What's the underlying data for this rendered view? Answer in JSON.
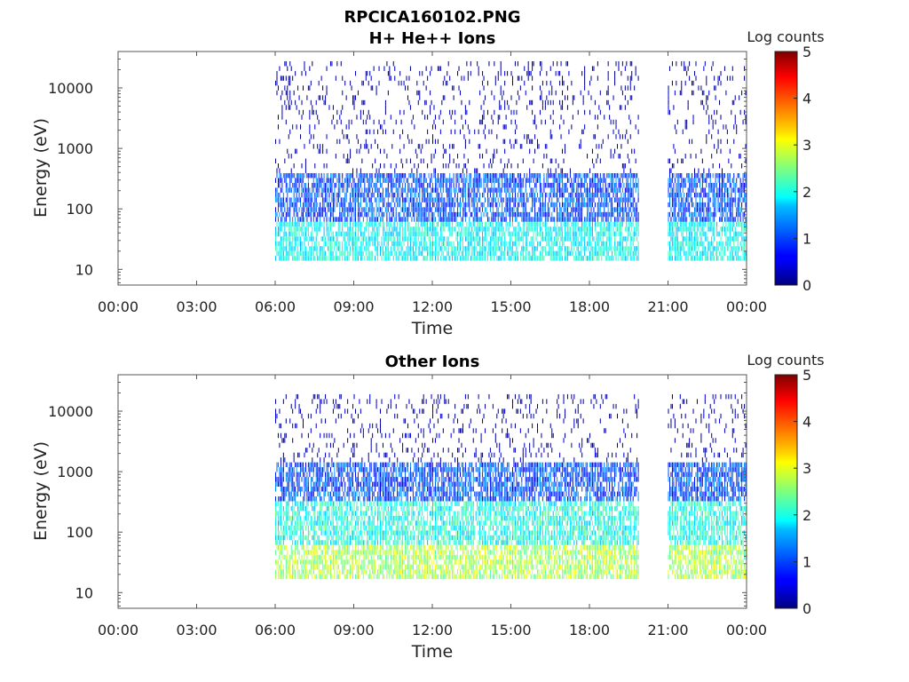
{
  "figure_title": "RPCICA160102.PNG",
  "chart_data": [
    {
      "type": "heatmap",
      "title": "H+ He++ Ions",
      "xlabel": "Time",
      "ylabel": "Energy (eV)",
      "x_ticks": [
        "00:00",
        "03:00",
        "06:00",
        "09:00",
        "12:00",
        "15:00",
        "18:00",
        "21:00",
        "00:00"
      ],
      "xlim_hours": [
        0,
        24
      ],
      "y_scale": "log",
      "y_ticks": [
        {
          "value": 10,
          "label": "10"
        },
        {
          "value": 100,
          "label": "100"
        },
        {
          "value": 1000,
          "label": "1000"
        },
        {
          "value": 10000,
          "label": "10000"
        }
      ],
      "ylim": [
        5.5,
        40000
      ],
      "colorbar": {
        "label": "Log counts",
        "range": [
          0,
          5
        ],
        "ticks": [
          "0",
          "1",
          "2",
          "3",
          "4",
          "5"
        ],
        "colormap": "jet"
      },
      "data_coverage_hours": [
        [
          6.0,
          19.9
        ],
        [
          21.0,
          24.0
        ]
      ],
      "gap_hours": [
        [
          0,
          6.0
        ],
        [
          19.9,
          21.0
        ]
      ],
      "approx_intensity_profile": [
        {
          "energy_range_eV": [
            15,
            60
          ],
          "log_counts": [
            1.5,
            2.3
          ]
        },
        {
          "energy_range_eV": [
            60,
            400
          ],
          "log_counts": [
            0.5,
            1.5
          ]
        },
        {
          "energy_range_eV": [
            400,
            30000
          ],
          "log_counts": [
            0,
            0.5
          ]
        }
      ]
    },
    {
      "type": "heatmap",
      "title": "Other Ions",
      "xlabel": "Time",
      "ylabel": "Energy (eV)",
      "x_ticks": [
        "00:00",
        "03:00",
        "06:00",
        "09:00",
        "12:00",
        "15:00",
        "18:00",
        "21:00",
        "00:00"
      ],
      "xlim_hours": [
        0,
        24
      ],
      "y_scale": "log",
      "y_ticks": [
        {
          "value": 10,
          "label": "10"
        },
        {
          "value": 100,
          "label": "100"
        },
        {
          "value": 1000,
          "label": "1000"
        },
        {
          "value": 10000,
          "label": "10000"
        }
      ],
      "ylim": [
        5.5,
        40000
      ],
      "colorbar": {
        "label": "Log counts",
        "range": [
          0,
          5
        ],
        "ticks": [
          "0",
          "1",
          "2",
          "3",
          "4",
          "5"
        ],
        "colormap": "jet"
      },
      "data_coverage_hours": [
        [
          6.0,
          19.9
        ],
        [
          21.0,
          24.0
        ]
      ],
      "gap_hours": [
        [
          0,
          6.0
        ],
        [
          19.9,
          21.0
        ]
      ],
      "approx_intensity_profile": [
        {
          "energy_range_eV": [
            17,
            60
          ],
          "log_counts": [
            2.2,
            3.2
          ]
        },
        {
          "energy_range_eV": [
            60,
            300
          ],
          "log_counts": [
            1.5,
            2.5
          ]
        },
        {
          "energy_range_eV": [
            300,
            1500
          ],
          "log_counts": [
            0.5,
            1.5
          ]
        },
        {
          "energy_range_eV": [
            1500,
            20000
          ],
          "log_counts": [
            0,
            0.5
          ]
        }
      ]
    }
  ]
}
